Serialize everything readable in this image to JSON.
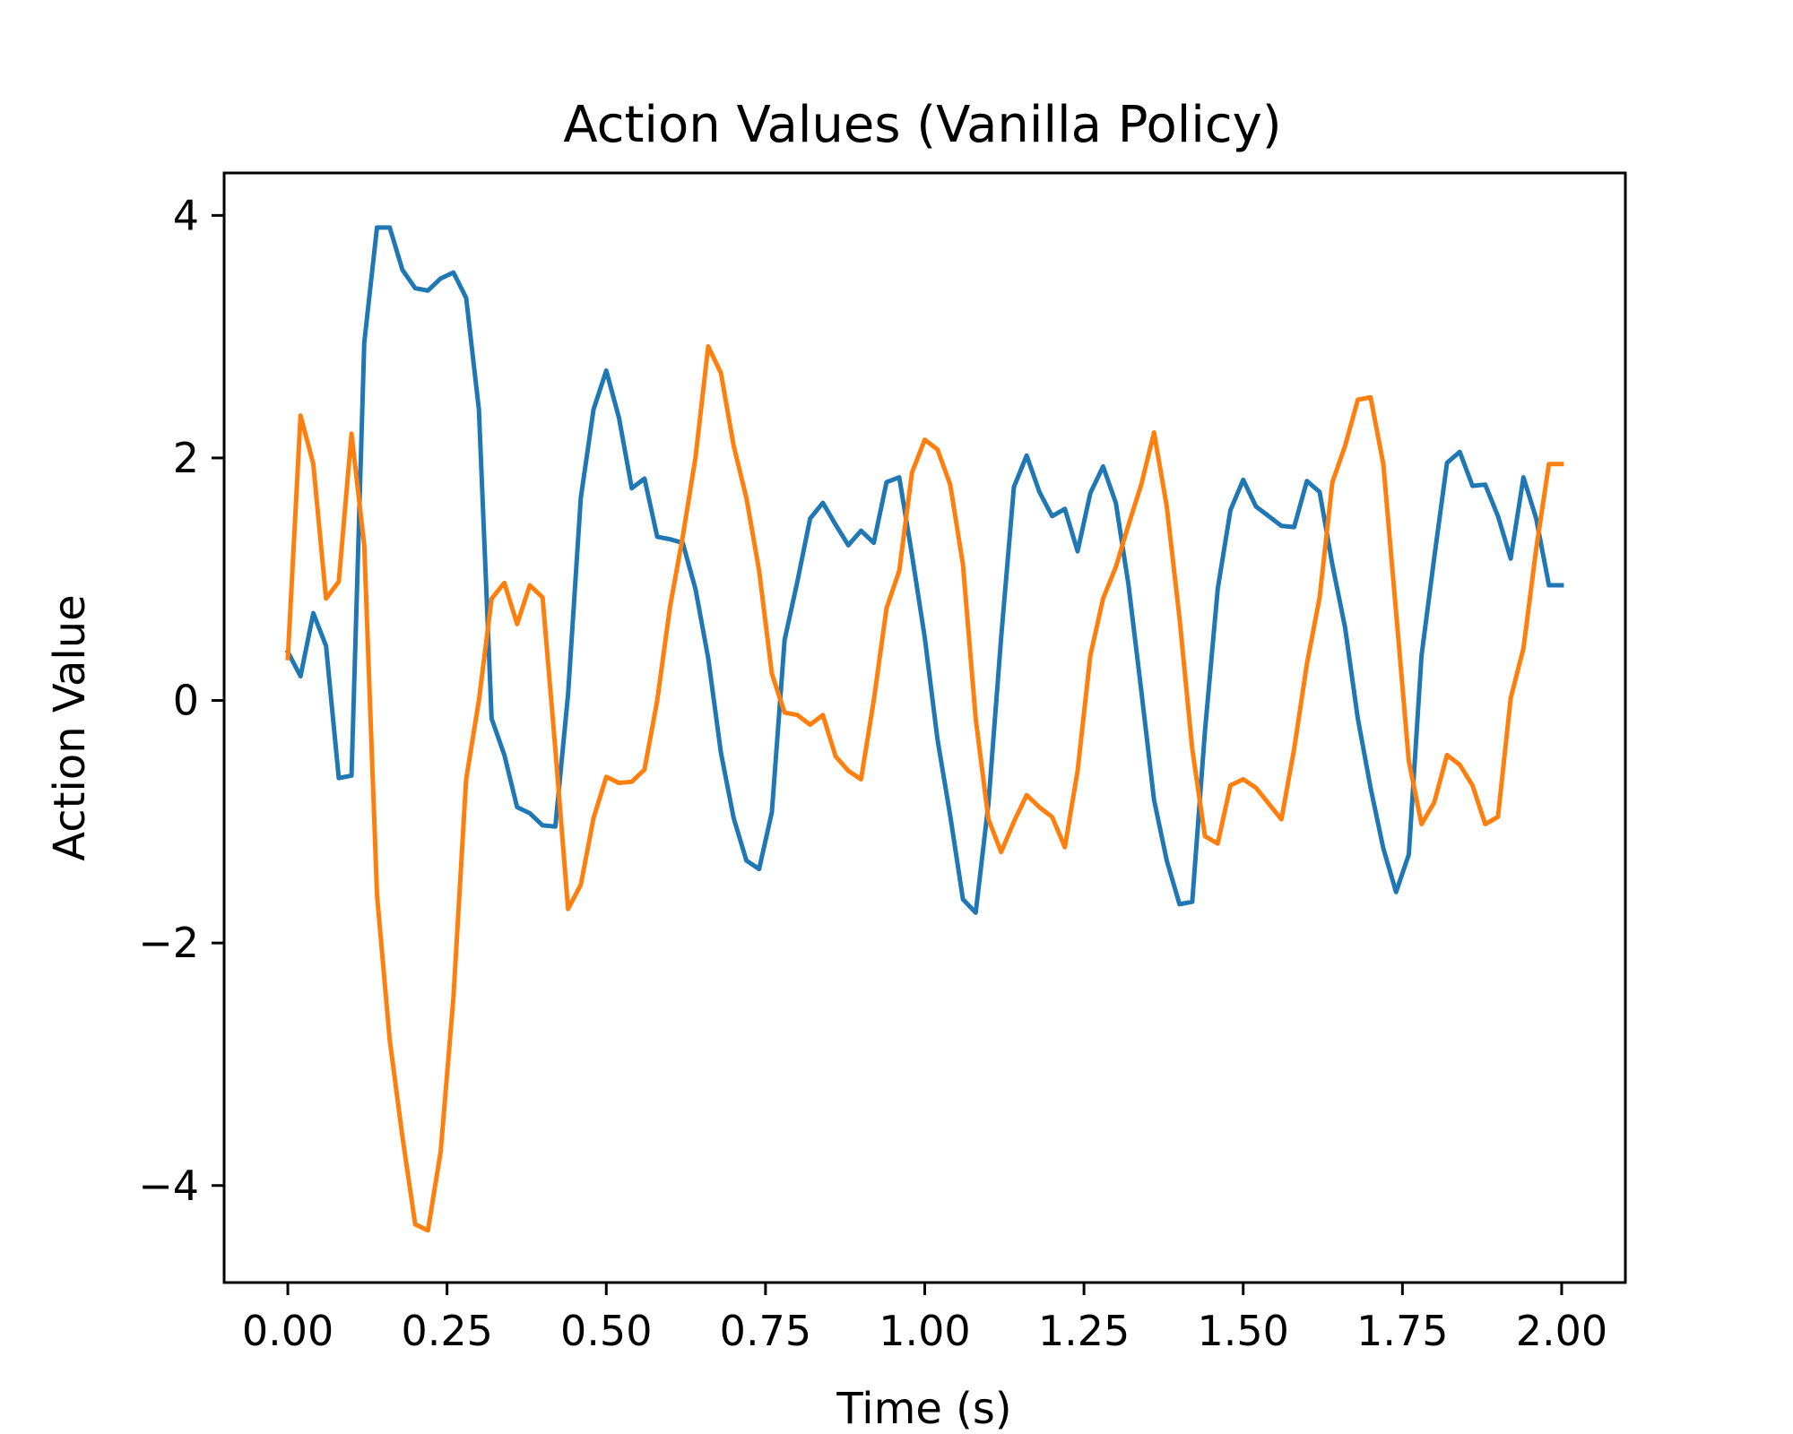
{
  "chart_data": {
    "type": "line",
    "title": "Action Values (Vanilla Policy)",
    "xlabel": "Time (s)",
    "ylabel": "Action Value",
    "xlim": [
      -0.1,
      2.1
    ],
    "ylim": [
      -4.8,
      4.35
    ],
    "xticks": [
      0.0,
      0.25,
      0.5,
      0.75,
      1.0,
      1.25,
      1.5,
      1.75,
      2.0
    ],
    "xtick_labels": [
      "0.00",
      "0.25",
      "0.50",
      "0.75",
      "1.00",
      "1.25",
      "1.50",
      "1.75",
      "2.00"
    ],
    "yticks": [
      -4,
      -2,
      0,
      2,
      4
    ],
    "ytick_labels": [
      "−4",
      "−2",
      "0",
      "2",
      "4"
    ],
    "grid": false,
    "x": [
      0.0,
      0.02,
      0.04,
      0.06,
      0.08,
      0.1,
      0.12,
      0.14,
      0.16,
      0.18,
      0.2,
      0.22,
      0.24,
      0.26,
      0.28,
      0.3,
      0.32,
      0.34,
      0.36,
      0.38,
      0.4,
      0.42,
      0.44,
      0.46,
      0.48,
      0.5,
      0.52,
      0.54,
      0.56,
      0.58,
      0.6,
      0.62,
      0.64,
      0.66,
      0.68,
      0.7,
      0.72,
      0.74,
      0.76,
      0.78,
      0.8,
      0.82,
      0.84,
      0.86,
      0.88,
      0.9,
      0.92,
      0.94,
      0.96,
      0.98,
      1.0,
      1.02,
      1.04,
      1.06,
      1.08,
      1.1,
      1.12,
      1.14,
      1.16,
      1.18,
      1.2,
      1.22,
      1.24,
      1.26,
      1.28,
      1.3,
      1.32,
      1.34,
      1.36,
      1.38,
      1.4,
      1.42,
      1.44,
      1.46,
      1.48,
      1.5,
      1.52,
      1.54,
      1.56,
      1.58,
      1.6,
      1.62,
      1.64,
      1.66,
      1.68,
      1.7,
      1.72,
      1.74,
      1.76,
      1.78,
      1.8,
      1.82,
      1.84,
      1.86,
      1.88,
      1.9,
      1.92,
      1.94,
      1.96,
      1.98,
      2.0
    ],
    "series": [
      {
        "color": "#1f77b4",
        "values": [
          0.4,
          0.2,
          0.72,
          0.45,
          -0.64,
          -0.62,
          2.95,
          3.9,
          3.9,
          3.55,
          3.4,
          3.38,
          3.48,
          3.53,
          3.32,
          2.4,
          -0.15,
          -0.45,
          -0.88,
          -0.93,
          -1.03,
          -1.04,
          0.05,
          1.67,
          2.4,
          2.72,
          2.33,
          1.75,
          1.83,
          1.35,
          1.33,
          1.3,
          0.92,
          0.35,
          -0.43,
          -0.97,
          -1.32,
          -1.39,
          -0.92,
          0.5,
          0.98,
          1.5,
          1.63,
          1.45,
          1.28,
          1.4,
          1.3,
          1.8,
          1.84,
          1.2,
          0.52,
          -0.32,
          -0.95,
          -1.64,
          -1.75,
          -0.85,
          0.52,
          1.76,
          2.02,
          1.72,
          1.52,
          1.58,
          1.23,
          1.71,
          1.93,
          1.63,
          0.95,
          0.08,
          -0.82,
          -1.32,
          -1.68,
          -1.66,
          -0.25,
          0.92,
          1.57,
          1.82,
          1.6,
          1.52,
          1.44,
          1.43,
          1.81,
          1.72,
          1.12,
          0.6,
          -0.15,
          -0.72,
          -1.22,
          -1.58,
          -1.27,
          0.37,
          1.18,
          1.96,
          2.05,
          1.77,
          1.78,
          1.52,
          1.17,
          1.84,
          1.5,
          0.95,
          0.95
        ]
      },
      {
        "color": "#ff7f0e",
        "values": [
          0.35,
          2.35,
          1.95,
          0.84,
          0.98,
          2.2,
          1.28,
          -1.6,
          -2.8,
          -3.6,
          -4.32,
          -4.37,
          -3.72,
          -2.45,
          -0.65,
          0.0,
          0.84,
          0.97,
          0.63,
          0.95,
          0.85,
          -0.4,
          -1.72,
          -1.52,
          -0.97,
          -0.63,
          -0.68,
          -0.67,
          -0.57,
          0.0,
          0.77,
          1.35,
          2.0,
          2.92,
          2.7,
          2.1,
          1.67,
          1.07,
          0.22,
          -0.1,
          -0.12,
          -0.2,
          -0.12,
          -0.46,
          -0.58,
          -0.65,
          0.0,
          0.76,
          1.07,
          1.88,
          2.15,
          2.07,
          1.78,
          1.12,
          -0.15,
          -0.98,
          -1.25,
          -1.0,
          -0.78,
          -0.88,
          -0.96,
          -1.21,
          -0.58,
          0.37,
          0.84,
          1.1,
          1.45,
          1.78,
          2.21,
          1.6,
          0.68,
          -0.4,
          -1.12,
          -1.18,
          -0.7,
          -0.65,
          -0.72,
          -0.85,
          -0.98,
          -0.4,
          0.3,
          0.85,
          1.8,
          2.1,
          2.48,
          2.5,
          1.95,
          0.73,
          -0.5,
          -1.02,
          -0.84,
          -0.45,
          -0.53,
          -0.7,
          -1.02,
          -0.96,
          0.02,
          0.43,
          1.25,
          1.95,
          1.95
        ]
      }
    ]
  }
}
